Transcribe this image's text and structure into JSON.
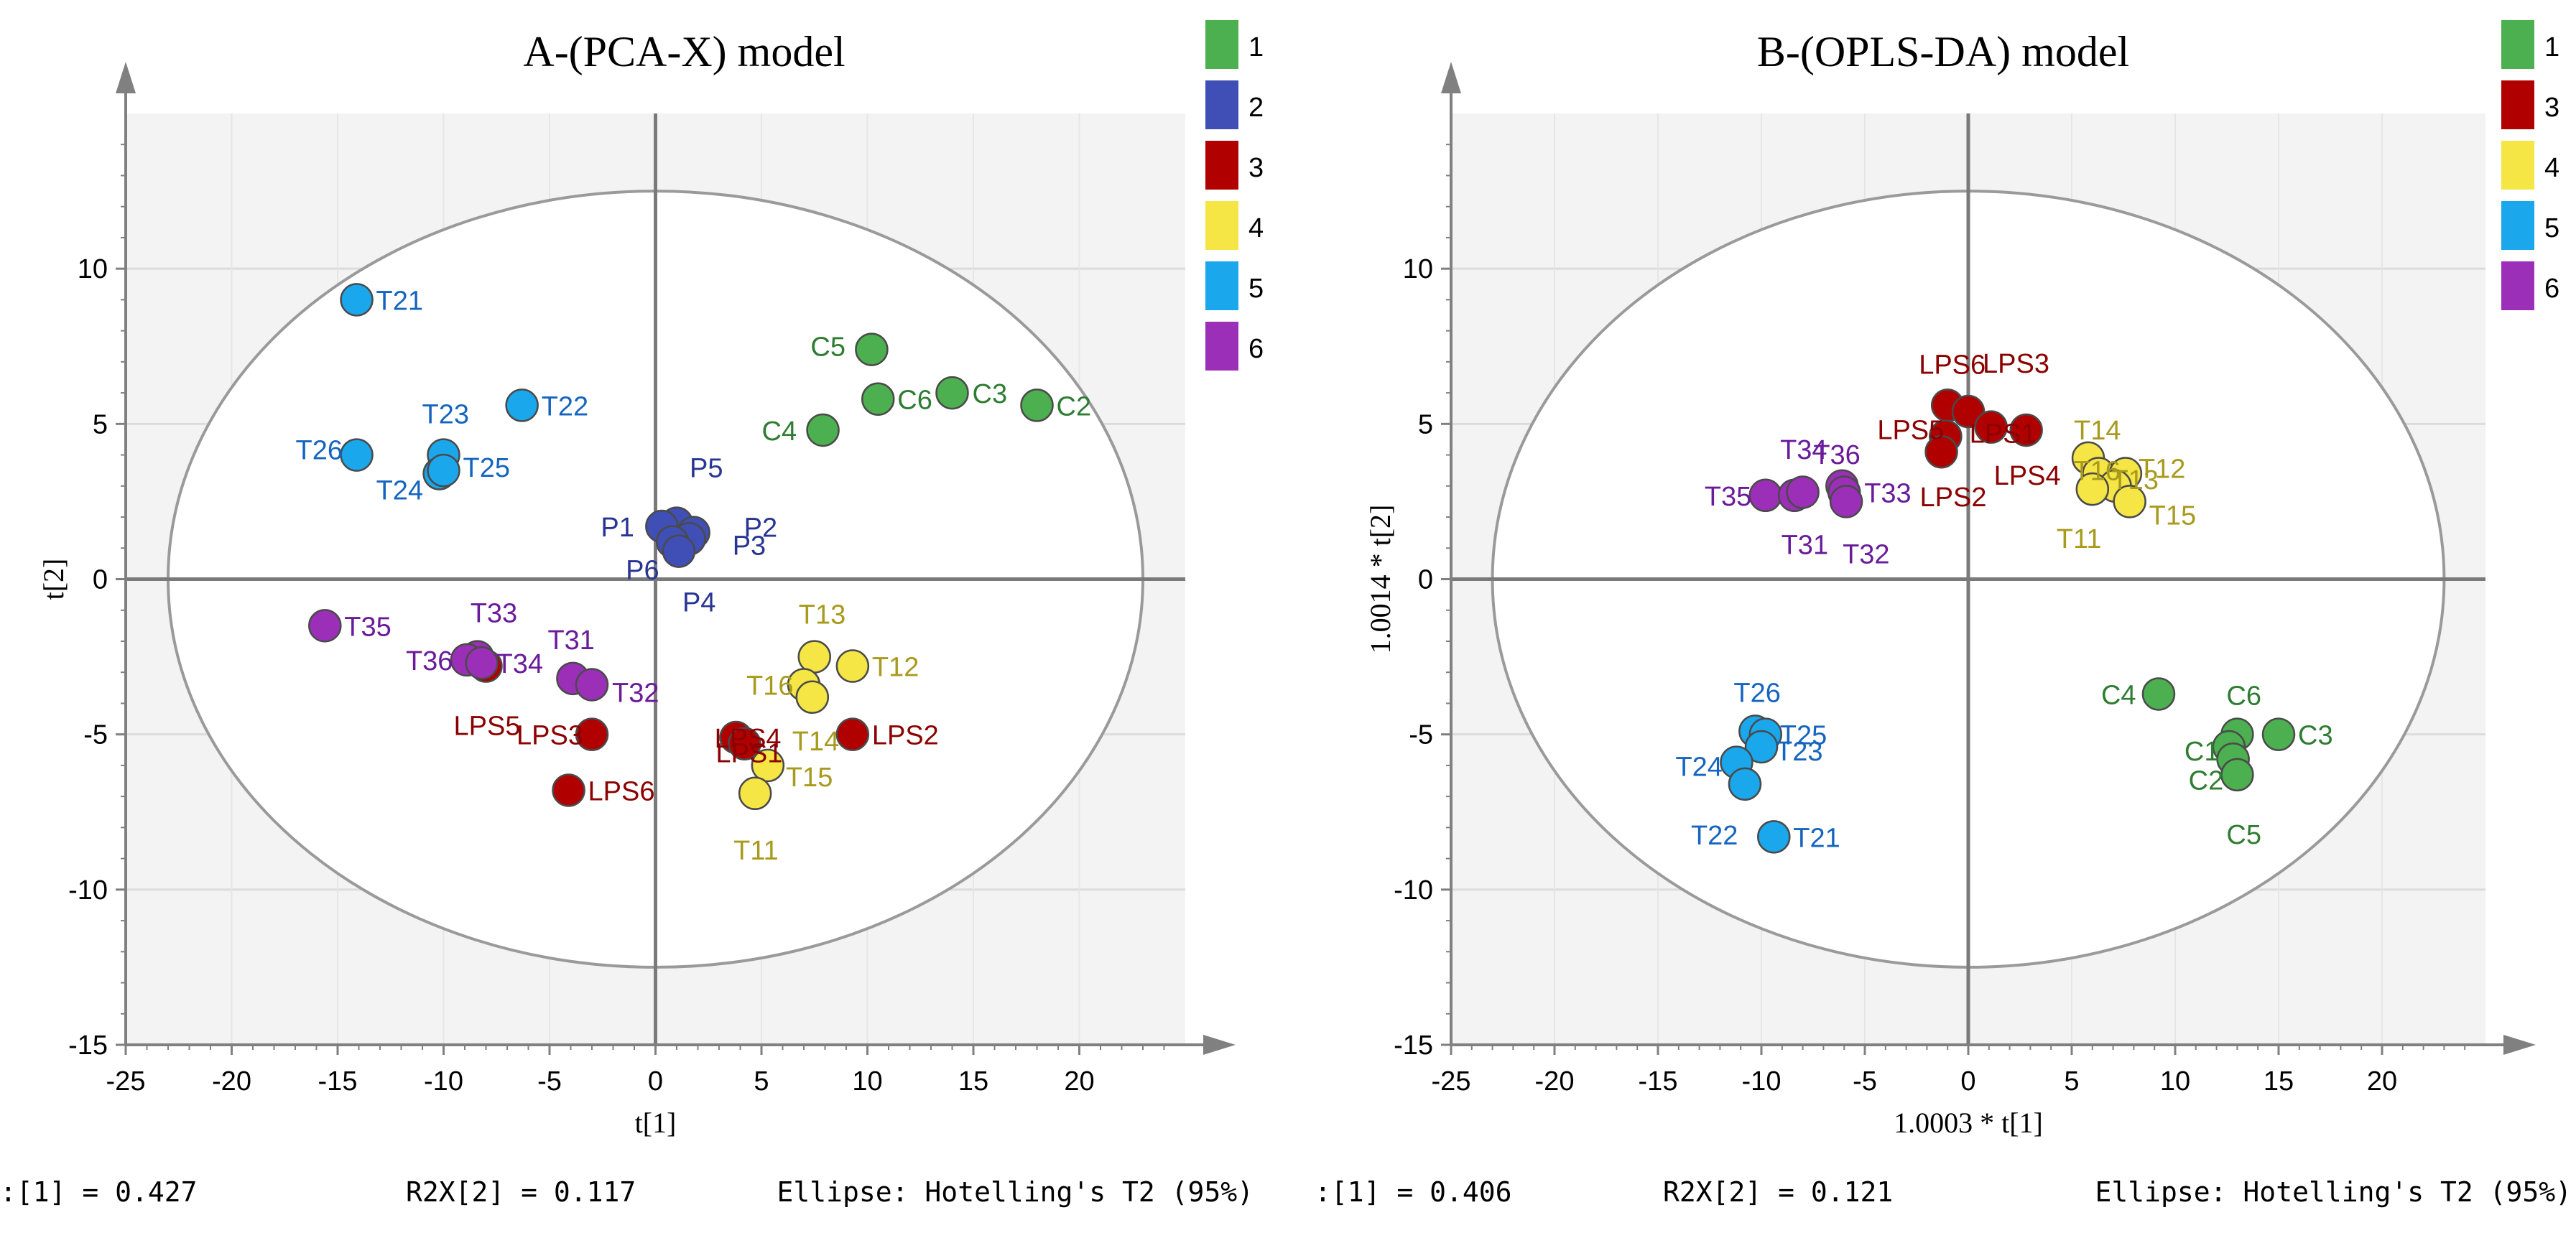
{
  "chart_data": [
    {
      "type": "scatter",
      "title": "A-(PCA-X) model",
      "xlabel": "t[1]",
      "ylabel": "t[2]",
      "xlim": [
        -25,
        25
      ],
      "ylim": [
        -15,
        15
      ],
      "xticks": [
        -25,
        -20,
        -15,
        -10,
        -5,
        0,
        5,
        10,
        15,
        20
      ],
      "yticks": [
        -15,
        -10,
        -5,
        0,
        5,
        10
      ],
      "grid": true,
      "ellipse": {
        "label": "Hotelling's T2 (95%)",
        "rx": 23,
        "ry": 12.5
      },
      "legend": [
        {
          "name": "1",
          "color": "#4caf50"
        },
        {
          "name": "2",
          "color": "#3f4fb5"
        },
        {
          "name": "3",
          "color": "#b00000"
        },
        {
          "name": "4",
          "color": "#f5e646"
        },
        {
          "name": "5",
          "color": "#1aa7ec"
        },
        {
          "name": "6",
          "color": "#9c2fb8"
        }
      ],
      "footer": {
        "left": ":[1] = 0.427",
        "middle": "R2X[2] = 0.117",
        "right": "Ellipse: Hotelling's T2 (95%)"
      },
      "series": [
        {
          "name": "1",
          "color": "#4caf50",
          "label_color": "#2e7d32",
          "points": [
            {
              "label": "C5",
              "x": 10.2,
              "y": 7.4
            },
            {
              "label": "C6",
              "x": 10.5,
              "y": 5.8
            },
            {
              "label": "C3",
              "x": 14.0,
              "y": 6.0
            },
            {
              "label": "C2",
              "x": 18.0,
              "y": 5.6
            },
            {
              "label": "C4",
              "x": 7.9,
              "y": 4.8
            }
          ]
        },
        {
          "name": "2",
          "color": "#3f4fb5",
          "label_color": "#283593",
          "points": [
            {
              "label": "P5",
              "x": 1.0,
              "y": 1.8
            },
            {
              "label": "P1",
              "x": 0.3,
              "y": 1.7
            },
            {
              "label": "P2",
              "x": 1.8,
              "y": 1.5
            },
            {
              "label": "P3",
              "x": 1.6,
              "y": 1.3
            },
            {
              "label": "P6",
              "x": 0.8,
              "y": 1.2
            },
            {
              "label": "P4",
              "x": 1.1,
              "y": 0.9
            }
          ]
        },
        {
          "name": "3",
          "color": "#b00000",
          "label_color": "#8b0000",
          "points": [
            {
              "label": "LPS5",
              "x": -8.0,
              "y": -2.8
            },
            {
              "label": "LPS3",
              "x": -3.0,
              "y": -5.0
            },
            {
              "label": "LPS6",
              "x": -4.1,
              "y": -6.8
            },
            {
              "label": "LPS4",
              "x": 3.8,
              "y": -5.1
            },
            {
              "label": "LPS1",
              "x": 4.2,
              "y": -5.3
            },
            {
              "label": "LPS2",
              "x": 9.3,
              "y": -5.0
            }
          ]
        },
        {
          "name": "4",
          "color": "#f5e646",
          "label_color": "#a89a1c",
          "points": [
            {
              "label": "T13",
              "x": 7.5,
              "y": -2.5
            },
            {
              "label": "T12",
              "x": 9.3,
              "y": -2.8
            },
            {
              "label": "T16",
              "x": 7.0,
              "y": -3.4
            },
            {
              "label": "T14",
              "x": 7.4,
              "y": -3.8
            },
            {
              "label": "T15",
              "x": 5.3,
              "y": -6.0
            },
            {
              "label": "T11",
              "x": 4.7,
              "y": -6.9
            }
          ]
        },
        {
          "name": "5",
          "color": "#1aa7ec",
          "label_color": "#1565c0",
          "points": [
            {
              "label": "T21",
              "x": -14.1,
              "y": 9.0
            },
            {
              "label": "T22",
              "x": -6.3,
              "y": 5.6
            },
            {
              "label": "T23",
              "x": -10.0,
              "y": 4.0
            },
            {
              "label": "T26",
              "x": -14.1,
              "y": 4.0
            },
            {
              "label": "T24",
              "x": -10.2,
              "y": 3.4
            },
            {
              "label": "T25",
              "x": -10.0,
              "y": 3.5
            }
          ]
        },
        {
          "name": "6",
          "color": "#9c2fb8",
          "label_color": "#6a1b9a",
          "points": [
            {
              "label": "T35",
              "x": -15.6,
              "y": -1.5
            },
            {
              "label": "T33",
              "x": -8.4,
              "y": -2.5
            },
            {
              "label": "T36",
              "x": -8.9,
              "y": -2.6
            },
            {
              "label": "T34",
              "x": -8.2,
              "y": -2.7
            },
            {
              "label": "T31",
              "x": -3.9,
              "y": -3.2
            },
            {
              "label": "T32",
              "x": -3.0,
              "y": -3.4
            }
          ]
        }
      ]
    },
    {
      "type": "scatter",
      "title": "B-(OPLS-DA) model",
      "xlabel": "1.0003 * t[1]",
      "ylabel": "1.0014 * t[2]",
      "xlim": [
        -25,
        25
      ],
      "ylim": [
        -15,
        15
      ],
      "xticks": [
        -25,
        -20,
        -15,
        -10,
        -5,
        0,
        5,
        10,
        15,
        20
      ],
      "yticks": [
        -15,
        -10,
        -5,
        0,
        5,
        10
      ],
      "grid": true,
      "ellipse": {
        "label": "Hotelling's T2 (95%)",
        "rx": 23,
        "ry": 12.5
      },
      "legend": [
        {
          "name": "1",
          "color": "#4caf50"
        },
        {
          "name": "3",
          "color": "#b00000"
        },
        {
          "name": "4",
          "color": "#f5e646"
        },
        {
          "name": "5",
          "color": "#1aa7ec"
        },
        {
          "name": "6",
          "color": "#9c2fb8"
        }
      ],
      "footer": {
        "left": ":[1] = 0.406",
        "middle": "R2X[2] = 0.121",
        "right": "Ellipse: Hotelling's T2 (95%)"
      },
      "series": [
        {
          "name": "1",
          "color": "#4caf50",
          "label_color": "#2e7d32",
          "points": [
            {
              "label": "C4",
              "x": 9.2,
              "y": -3.7
            },
            {
              "label": "C6",
              "x": 13.0,
              "y": -5.0
            },
            {
              "label": "C3",
              "x": 15.0,
              "y": -5.0
            },
            {
              "label": "C1",
              "x": 12.6,
              "y": -5.4
            },
            {
              "label": "C2",
              "x": 12.8,
              "y": -5.8
            },
            {
              "label": "C5",
              "x": 13.0,
              "y": -6.3
            }
          ]
        },
        {
          "name": "3",
          "color": "#b00000",
          "label_color": "#8b0000",
          "points": [
            {
              "label": "LPS6",
              "x": -1.0,
              "y": 5.6
            },
            {
              "label": "LPS3",
              "x": 0.0,
              "y": 5.4
            },
            {
              "label": "LPS1",
              "x": 1.1,
              "y": 4.9
            },
            {
              "label": "LPS5",
              "x": -1.1,
              "y": 4.6
            },
            {
              "label": "LPS4",
              "x": 2.8,
              "y": 4.8
            },
            {
              "label": "LPS2",
              "x": -1.3,
              "y": 4.1
            }
          ]
        },
        {
          "name": "4",
          "color": "#f5e646",
          "label_color": "#a89a1c",
          "points": [
            {
              "label": "T14",
              "x": 5.8,
              "y": 3.9
            },
            {
              "label": "T16",
              "x": 6.3,
              "y": 3.4
            },
            {
              "label": "T12",
              "x": 7.6,
              "y": 3.4
            },
            {
              "label": "T13",
              "x": 7.1,
              "y": 3.0
            },
            {
              "label": "T15",
              "x": 7.8,
              "y": 2.5
            },
            {
              "label": "T11",
              "x": 6.0,
              "y": 2.9
            }
          ]
        },
        {
          "name": "5",
          "color": "#1aa7ec",
          "label_color": "#1565c0",
          "points": [
            {
              "label": "T26",
              "x": -10.3,
              "y": -4.9
            },
            {
              "label": "T25",
              "x": -9.8,
              "y": -5.0
            },
            {
              "label": "T23",
              "x": -10.0,
              "y": -5.4
            },
            {
              "label": "T24",
              "x": -11.2,
              "y": -5.9
            },
            {
              "label": "T22",
              "x": -10.8,
              "y": -6.6
            },
            {
              "label": "T21",
              "x": -9.4,
              "y": -8.3
            }
          ]
        },
        {
          "name": "6",
          "color": "#9c2fb8",
          "label_color": "#6a1b9a",
          "points": [
            {
              "label": "T35",
              "x": -9.8,
              "y": 2.7
            },
            {
              "label": "T34",
              "x": -8.4,
              "y": 2.7
            },
            {
              "label": "T31",
              "x": -8.0,
              "y": 2.8
            },
            {
              "label": "T36",
              "x": -6.1,
              "y": 3.0
            },
            {
              "label": "T33",
              "x": -6.0,
              "y": 2.8
            },
            {
              "label": "T32",
              "x": -5.9,
              "y": 2.5
            }
          ]
        }
      ]
    }
  ]
}
